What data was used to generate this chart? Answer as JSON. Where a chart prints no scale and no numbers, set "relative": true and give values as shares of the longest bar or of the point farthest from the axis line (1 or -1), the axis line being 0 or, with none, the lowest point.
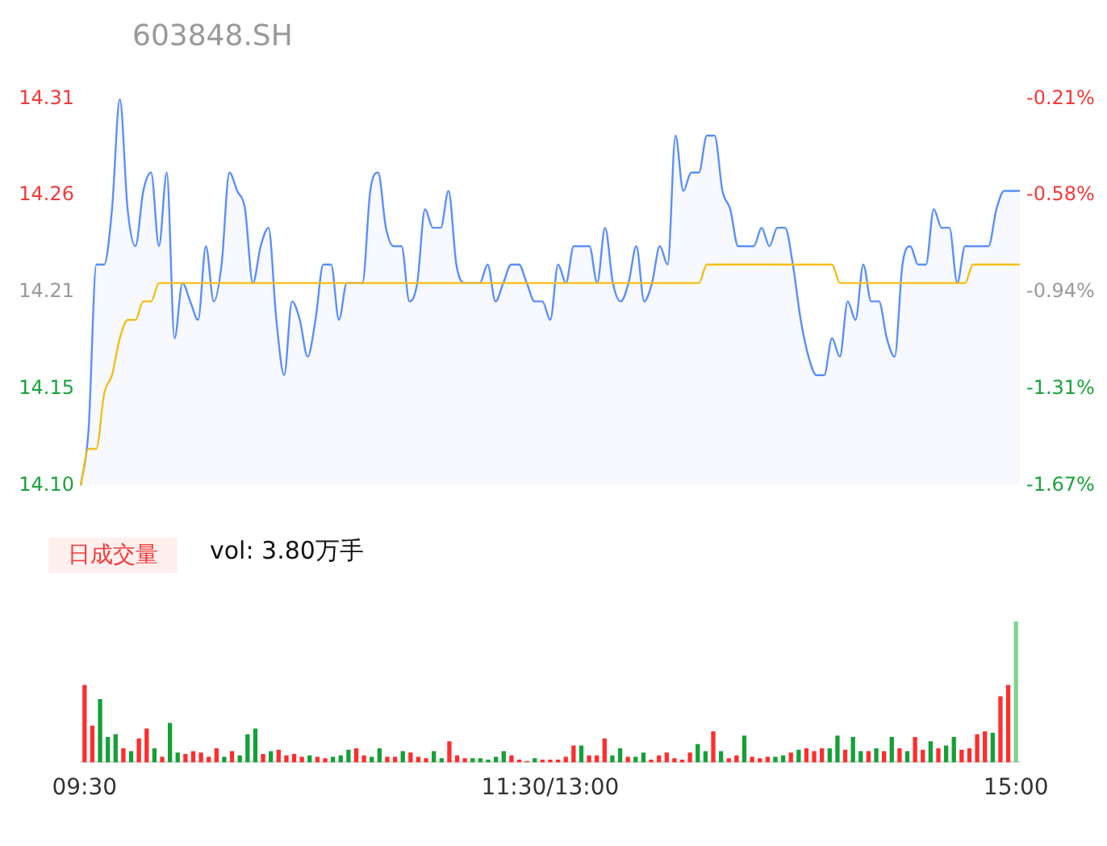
{
  "chart_data": [
    {
      "type": "line",
      "title": "603848.SH",
      "categories": [
        null,
        null,
        null,
        null,
        null,
        null,
        null,
        null,
        null,
        null,
        null,
        null,
        null,
        null,
        null,
        null,
        null,
        null,
        null,
        null,
        null,
        null,
        null,
        null,
        null,
        null,
        null,
        null,
        null,
        null,
        null,
        null,
        null,
        null,
        null,
        null,
        null,
        null,
        null,
        null,
        null,
        null,
        null,
        null,
        null,
        null,
        null,
        null,
        null,
        null,
        null,
        null,
        null,
        null,
        null,
        null,
        null,
        null,
        null,
        null,
        null,
        null,
        null,
        null,
        null,
        null,
        null,
        null,
        null,
        null,
        null,
        null,
        null,
        null,
        null,
        null,
        null,
        null,
        null,
        null,
        null,
        null,
        null,
        null,
        null,
        null,
        null,
        null,
        null,
        null,
        null,
        null,
        null,
        null,
        null,
        null,
        null,
        null,
        null,
        null,
        null,
        null,
        null,
        null,
        null,
        null,
        null,
        null,
        null,
        null,
        null,
        null,
        null,
        null,
        null,
        null,
        null,
        null,
        null,
        null,
        null
      ],
      "series": [
        {
          "type": "area",
          "color": "#5b8ff9",
          "values": [
            14.1,
            14.13,
            14.22,
            14.22,
            14.25,
            14.31,
            14.25,
            14.23,
            14.26,
            14.27,
            14.23,
            14.27,
            14.18,
            14.21,
            14.2,
            14.19,
            14.23,
            14.2,
            14.22,
            14.27,
            14.26,
            14.25,
            14.21,
            14.23,
            14.24,
            14.19,
            14.16,
            14.2,
            14.19,
            14.17,
            14.19,
            14.22,
            14.22,
            14.19,
            14.21,
            14.21,
            14.21,
            14.26,
            14.27,
            14.24,
            14.23,
            14.23,
            14.2,
            14.21,
            14.25,
            14.24,
            14.24,
            14.26,
            14.22,
            14.21,
            14.21,
            14.21,
            14.22,
            14.2,
            14.21,
            14.22,
            14.22,
            14.21,
            14.2,
            14.2,
            14.19,
            14.22,
            14.21,
            14.23,
            14.23,
            14.23,
            14.21,
            14.24,
            14.21,
            14.2,
            14.21,
            14.23,
            14.2,
            14.21,
            14.23,
            14.22,
            14.29,
            14.26,
            14.27,
            14.27,
            14.29,
            14.29,
            14.26,
            14.25,
            14.23,
            14.23,
            14.23,
            14.24,
            14.23,
            14.24,
            14.24,
            14.22,
            14.19,
            14.17,
            14.16,
            14.16,
            14.18,
            14.17,
            14.2,
            14.19,
            14.22,
            14.2,
            14.2,
            14.18,
            14.17,
            14.22,
            14.23,
            14.22,
            14.22,
            14.25,
            14.24,
            14.24,
            14.21,
            14.23,
            14.23,
            14.23,
            14.23,
            14.25,
            14.26,
            14.26,
            14.26
          ]
        },
        {
          "type": "line",
          "color": "#f6bd16",
          "values": [
            14.1,
            14.12,
            14.12,
            14.15,
            14.16,
            14.18,
            14.19,
            14.19,
            14.2,
            14.2,
            14.21,
            14.21,
            14.21,
            14.21,
            14.21,
            14.21,
            14.21,
            14.21,
            14.21,
            14.21,
            14.21,
            14.21,
            14.21,
            14.21,
            14.21,
            14.21,
            14.21,
            14.21,
            14.21,
            14.21,
            14.21,
            14.21,
            14.21,
            14.21,
            14.21,
            14.21,
            14.21,
            14.21,
            14.21,
            14.21,
            14.21,
            14.21,
            14.21,
            14.21,
            14.21,
            14.21,
            14.21,
            14.21,
            14.21,
            14.21,
            14.21,
            14.21,
            14.21,
            14.21,
            14.21,
            14.21,
            14.21,
            14.21,
            14.21,
            14.21,
            14.21,
            14.21,
            14.21,
            14.21,
            14.21,
            14.21,
            14.21,
            14.21,
            14.21,
            14.21,
            14.21,
            14.21,
            14.21,
            14.21,
            14.21,
            14.21,
            14.21,
            14.21,
            14.21,
            14.21,
            14.22,
            14.22,
            14.22,
            14.22,
            14.22,
            14.22,
            14.22,
            14.22,
            14.22,
            14.22,
            14.22,
            14.22,
            14.22,
            14.22,
            14.22,
            14.22,
            14.22,
            14.21,
            14.21,
            14.21,
            14.21,
            14.21,
            14.21,
            14.21,
            14.21,
            14.21,
            14.21,
            14.21,
            14.21,
            14.21,
            14.21,
            14.21,
            14.21,
            14.21,
            14.22,
            14.22,
            14.22,
            14.22,
            14.22,
            14.22,
            14.22
          ]
        }
      ],
      "ylim": [
        14.1,
        14.31
      ],
      "yticks": [
        {
          "value": 14.1,
          "label": "14.10"
        },
        {
          "value": 14.1525,
          "label": "14.15"
        },
        {
          "value": 14.205,
          "label": "14.21"
        },
        {
          "value": 14.2575,
          "label": "14.26"
        },
        14.31
      ],
      "y2lim": [
        -1.67,
        -0.21
      ],
      "y2ticks": [
        {
          "value": -1.67,
          "label": "-1.67%"
        },
        {
          "value": -1.305,
          "label": "-1.31%"
        },
        {
          "value": -0.94,
          "label": "-0.94%"
        },
        {
          "value": -0.575,
          "label": "-0.58%"
        },
        {
          "value": -0.21,
          "label": "-0.21%"
        }
      ],
      "tick_labels": "y",
      "grid": false,
      "legend": false,
      "marker": "none"
    },
    {
      "type": "bar",
      "title": "日成交量",
      "annotations": [
        "vol: 3.80万手"
      ],
      "relative": true,
      "categories": [
        "09:30",
        null,
        null,
        null,
        null,
        null,
        null,
        null,
        null,
        null,
        null,
        null,
        null,
        null,
        null,
        null,
        null,
        null,
        null,
        null,
        null,
        null,
        null,
        null,
        null,
        null,
        null,
        null,
        null,
        null,
        null,
        null,
        null,
        null,
        null,
        null,
        null,
        null,
        null,
        null,
        null,
        null,
        null,
        null,
        null,
        null,
        null,
        null,
        null,
        null,
        null,
        null,
        null,
        null,
        null,
        null,
        null,
        null,
        null,
        null,
        "11:30/13:00",
        null,
        null,
        null,
        null,
        null,
        null,
        null,
        null,
        null,
        null,
        null,
        null,
        null,
        null,
        null,
        null,
        null,
        null,
        null,
        null,
        null,
        null,
        null,
        null,
        null,
        null,
        null,
        null,
        null,
        null,
        null,
        null,
        null,
        null,
        null,
        null,
        null,
        null,
        null,
        null,
        null,
        null,
        null,
        null,
        null,
        null,
        null,
        null,
        null,
        null,
        null,
        null,
        null,
        null,
        null,
        null,
        null,
        null,
        null,
        "15:00"
      ],
      "values": [
        0.55,
        0.26,
        0.45,
        0.18,
        0.2,
        0.1,
        0.08,
        0.17,
        0.24,
        0.1,
        0.04,
        0.28,
        0.07,
        0.06,
        0.08,
        0.07,
        0.04,
        0.1,
        0.04,
        0.08,
        0.05,
        0.2,
        0.24,
        0.06,
        0.08,
        0.09,
        0.05,
        0.06,
        0.04,
        0.05,
        0.04,
        0.03,
        0.04,
        0.05,
        0.09,
        0.1,
        0.05,
        0.04,
        0.1,
        0.04,
        0.04,
        0.08,
        0.07,
        0.04,
        0.03,
        0.08,
        0.03,
        0.15,
        0.05,
        0.03,
        0.03,
        0.03,
        0.02,
        0.04,
        0.08,
        0.05,
        0.02,
        0.01,
        0.03,
        0.02,
        0.02,
        0.02,
        0.04,
        0.12,
        0.12,
        0.05,
        0.05,
        0.17,
        0.05,
        0.1,
        0.04,
        0.04,
        0.07,
        0.02,
        0.05,
        0.07,
        0.03,
        0.02,
        0.07,
        0.13,
        0.08,
        0.22,
        0.08,
        0.03,
        0.05,
        0.19,
        0.04,
        0.03,
        0.04,
        0.04,
        0.05,
        0.07,
        0.09,
        0.1,
        0.08,
        0.1,
        0.1,
        0.19,
        0.09,
        0.18,
        0.08,
        0.08,
        0.1,
        0.08,
        0.18,
        0.1,
        0.08,
        0.18,
        0.09,
        0.15,
        0.1,
        0.12,
        0.18,
        0.09,
        0.1,
        0.2,
        0.22,
        0.21,
        0.47,
        0.55,
        1.0
      ],
      "colors": [
        "#ff2d2d",
        "#ff2d2d",
        "#14a037",
        "#14a037",
        "#14a037",
        "#ff2d2d",
        "#14a037",
        "#ff2d2d",
        "#ff2d2d",
        "#14a037",
        "#ff2d2d",
        "#14a037",
        "#14a037",
        "#ff2d2d",
        "#ff2d2d",
        "#ff2d2d",
        "#ff2d2d",
        "#ff2d2d",
        "#14a037",
        "#ff2d2d",
        "#14a037",
        "#14a037",
        "#14a037",
        "#ff2d2d",
        "#14a037",
        "#ff2d2d",
        "#ff2d2d",
        "#ff2d2d",
        "#ff2d2d",
        "#14a037",
        "#ff2d2d",
        "#ff2d2d",
        "#14a037",
        "#14a037",
        "#14a037",
        "#ff2d2d",
        "#ff2d2d",
        "#14a037",
        "#14a037",
        "#ff2d2d",
        "#ff2d2d",
        "#14a037",
        "#ff2d2d",
        "#ff2d2d",
        "#ff2d2d",
        "#14a037",
        "#14a037",
        "#ff2d2d",
        "#ff2d2d",
        "#ff2d2d",
        "#14a037",
        "#14a037",
        "#14a037",
        "#14a037",
        "#14a037",
        "#ff2d2d",
        "#ff2d2d",
        "#ff2d2d",
        "#14a037",
        "#ff2d2d",
        "#ff2d2d",
        "#ff2d2d",
        "#ff2d2d",
        "#ff2d2d",
        "#14a037",
        "#ff2d2d",
        "#ff2d2d",
        "#ff2d2d",
        "#14a037",
        "#14a037",
        "#ff2d2d",
        "#14a037",
        "#14a037",
        "#ff2d2d",
        "#ff2d2d",
        "#ff2d2d",
        "#ff2d2d",
        "#ff2d2d",
        "#ff2d2d",
        "#14a037",
        "#14a037",
        "#ff2d2d",
        "#14a037",
        "#ff2d2d",
        "#ff2d2d",
        "#14a037",
        "#ff2d2d",
        "#ff2d2d",
        "#ff2d2d",
        "#14a037",
        "#14a037",
        "#ff2d2d",
        "#14a037",
        "#ff2d2d",
        "#ff2d2d",
        "#ff2d2d",
        "#14a037",
        "#14a037",
        "#ff2d2d",
        "#14a037",
        "#14a037",
        "#ff2d2d",
        "#14a037",
        "#ff2d2d",
        "#14a037",
        "#ff2d2d",
        "#14a037",
        "#ff2d2d",
        "#ff2d2d",
        "#14a037",
        "#ff2d2d",
        "#14a037",
        "#14a037",
        "#ff2d2d",
        "#ff2d2d",
        "#ff2d2d",
        "#ff2d2d",
        "#14a037",
        "#ff2d2d",
        "#ff2d2d",
        "#7fd48f"
      ],
      "tick_labels": "x",
      "grid": false,
      "legend": false
    }
  ]
}
